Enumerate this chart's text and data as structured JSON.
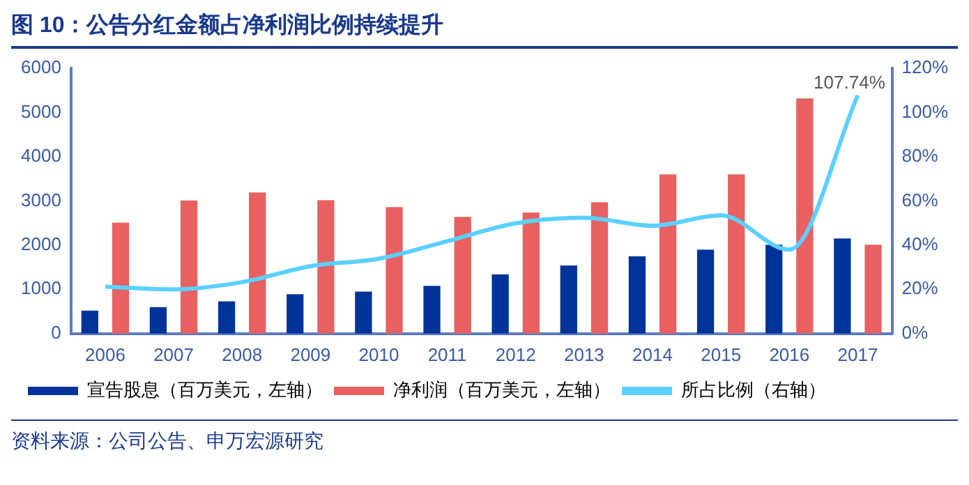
{
  "chart_data": {
    "type": "bar",
    "title": "图 10：公告分红金额占净利润比例持续提升",
    "categories": [
      "2006",
      "2007",
      "2008",
      "2009",
      "2010",
      "2011",
      "2012",
      "2013",
      "2014",
      "2015",
      "2016",
      "2017"
    ],
    "series": [
      {
        "name": "宣告股息（百万美元，左轴）",
        "color": "#003399",
        "values": [
          520,
          600,
          730,
          890,
          950,
          1080,
          1340,
          1540,
          1750,
          1900,
          2010,
          2150
        ]
      },
      {
        "name": "净利润（百万美元，左轴）",
        "color": "#e86060",
        "values": [
          2510,
          3010,
          3190,
          3020,
          2860,
          2640,
          2740,
          2970,
          3600,
          3600,
          5320,
          2010
        ]
      },
      {
        "name": "所占比例（右轴）",
        "type": "line",
        "axis": "y2",
        "color": "#5bd0ff",
        "values": [
          21.2,
          20,
          23.3,
          30.5,
          33.9,
          41.8,
          49.9,
          52.4,
          48.8,
          53.5,
          38,
          107.74
        ],
        "value_labels": [
          null,
          null,
          null,
          null,
          null,
          null,
          null,
          null,
          null,
          null,
          null,
          "107.74%"
        ]
      }
    ],
    "ylim": [
      0,
      6000
    ],
    "yticks": [
      0,
      1000,
      2000,
      3000,
      4000,
      5000,
      6000
    ],
    "y2lim": [
      0,
      120
    ],
    "y2ticks": [
      {
        "value": 0,
        "label": "0%"
      },
      {
        "value": 20,
        "label": "20%"
      },
      {
        "value": 40,
        "label": "40%"
      },
      {
        "value": 60,
        "label": "60%"
      },
      {
        "value": 80,
        "label": "80%"
      },
      {
        "value": 100,
        "label": "100%"
      },
      {
        "value": 120,
        "label": "120%"
      }
    ],
    "grid": false,
    "legend": "bottom",
    "marker": "none",
    "annotations": [
      "资料来源：公司公告、申万宏源研究"
    ]
  }
}
